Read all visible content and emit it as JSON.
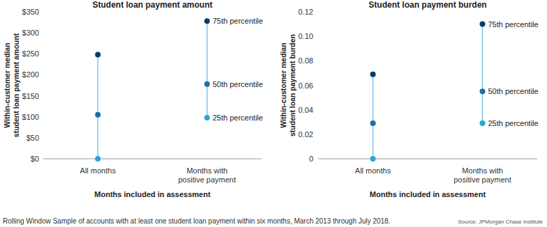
{
  "chart_data": [
    {
      "type": "dot",
      "title": "Student loan payment amount",
      "y_label": "Within-customer median student loan payment amount",
      "x_label": "Months included in assessment",
      "categories": [
        "All months",
        "Months with positive payment"
      ],
      "series": [
        {
          "name": "75th percentile",
          "color": "#0b3c6c",
          "marker": "circle",
          "values": [
            248,
            328
          ]
        },
        {
          "name": "50th percentile",
          "color": "#1f6ea6",
          "marker": "circle",
          "values": [
            105,
            178
          ]
        },
        {
          "name": "25th percentile",
          "color": "#27a6d9",
          "marker": "circle",
          "values": [
            0,
            98
          ]
        }
      ],
      "ylim": [
        0,
        350
      ],
      "yticks": [
        {
          "value": 0,
          "label": "$0"
        },
        {
          "value": 50,
          "label": "$50"
        },
        {
          "value": 100,
          "label": "$100"
        },
        {
          "value": 150,
          "label": "$150"
        },
        {
          "value": 200,
          "label": "$200"
        },
        {
          "value": 250,
          "label": "$250"
        },
        {
          "value": 300,
          "label": "$300"
        },
        {
          "value": 350,
          "label": "$350"
        }
      ],
      "grid": false
    },
    {
      "type": "dot",
      "title": "Student loan payment burden",
      "y_label": "Within-customer median student loan payment burden",
      "x_label": "Months included in assessment",
      "categories": [
        "All months",
        "Months with positive payment"
      ],
      "series": [
        {
          "name": "75th percentile",
          "color": "#0b3c6c",
          "marker": "circle",
          "values": [
            0.069,
            0.11
          ]
        },
        {
          "name": "50th percentile",
          "color": "#1f6ea6",
          "marker": "circle",
          "values": [
            0.029,
            0.055
          ]
        },
        {
          "name": "25th percentile",
          "color": "#27a6d9",
          "marker": "circle",
          "values": [
            0,
            0.029
          ]
        }
      ],
      "ylim": [
        0,
        0.12
      ],
      "yticks": [
        0,
        0.02,
        0.04,
        0.06,
        0.08,
        {
          "value": 0.1,
          "label": "0.10"
        },
        0.12
      ],
      "grid": false
    }
  ],
  "footnote": "Rolling Window Sample of accounts with at least one student loan payment within six months, March 2013 through July 2018.",
  "source": "Source: JPMorgan Chase Institute"
}
